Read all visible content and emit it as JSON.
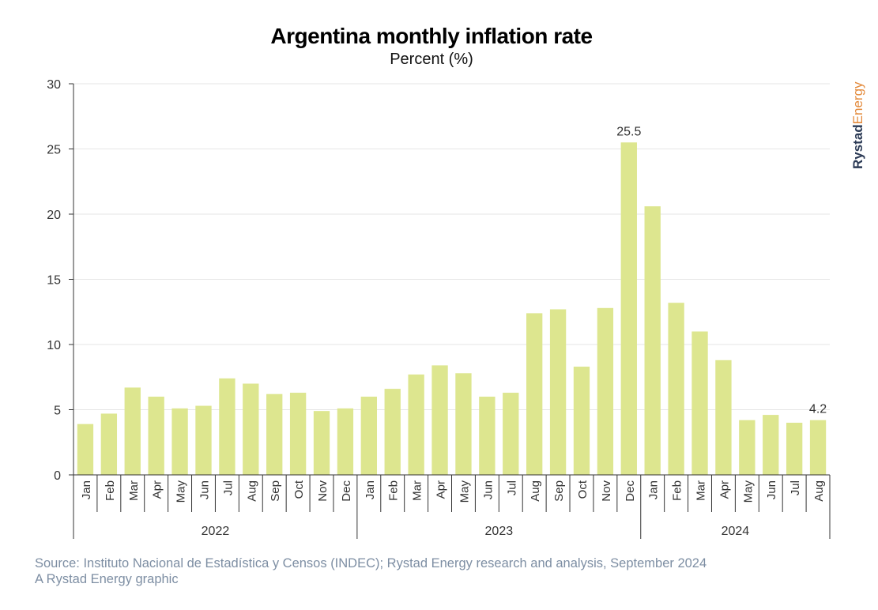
{
  "chart_data": {
    "type": "bar",
    "title": "Argentina monthly inflation rate",
    "subtitle": "Percent (%)",
    "ylim": [
      0,
      30
    ],
    "yticks": [
      0,
      5,
      10,
      15,
      20,
      25,
      30
    ],
    "grid": true,
    "bar_color": "#dde68f",
    "categories": [
      "Jan",
      "Feb",
      "Mar",
      "Apr",
      "May",
      "Jun",
      "Jul",
      "Aug",
      "Sep",
      "Oct",
      "Nov",
      "Dec",
      "Jan",
      "Feb",
      "Mar",
      "Apr",
      "May",
      "Jun",
      "Jul",
      "Aug",
      "Sep",
      "Oct",
      "Nov",
      "Dec",
      "Jan",
      "Feb",
      "Mar",
      "Apr",
      "May",
      "Jun",
      "Jul",
      "Aug"
    ],
    "values": [
      3.9,
      4.7,
      6.7,
      6.0,
      5.1,
      5.3,
      7.4,
      7.0,
      6.2,
      6.3,
      4.9,
      5.1,
      6.0,
      6.6,
      7.7,
      8.4,
      7.8,
      6.0,
      6.3,
      12.4,
      12.7,
      8.3,
      12.8,
      25.5,
      20.6,
      13.2,
      11.0,
      8.8,
      4.2,
      4.6,
      4.0,
      4.2
    ],
    "year_groups": [
      {
        "label": "2022",
        "count": 12
      },
      {
        "label": "2023",
        "count": 12
      },
      {
        "label": "2024",
        "count": 8
      }
    ],
    "data_labels": [
      {
        "index": 23,
        "text": "25.5"
      },
      {
        "index": 31,
        "text": "4.2"
      }
    ]
  },
  "brand": {
    "part1": "Rystad",
    "part2": "Energy"
  },
  "footer": {
    "source": "Source: Instituto Nacional de Estadística y Censos (INDEC); Rystad Energy research and analysis, September 2024",
    "credit": "A Rystad Energy graphic"
  }
}
